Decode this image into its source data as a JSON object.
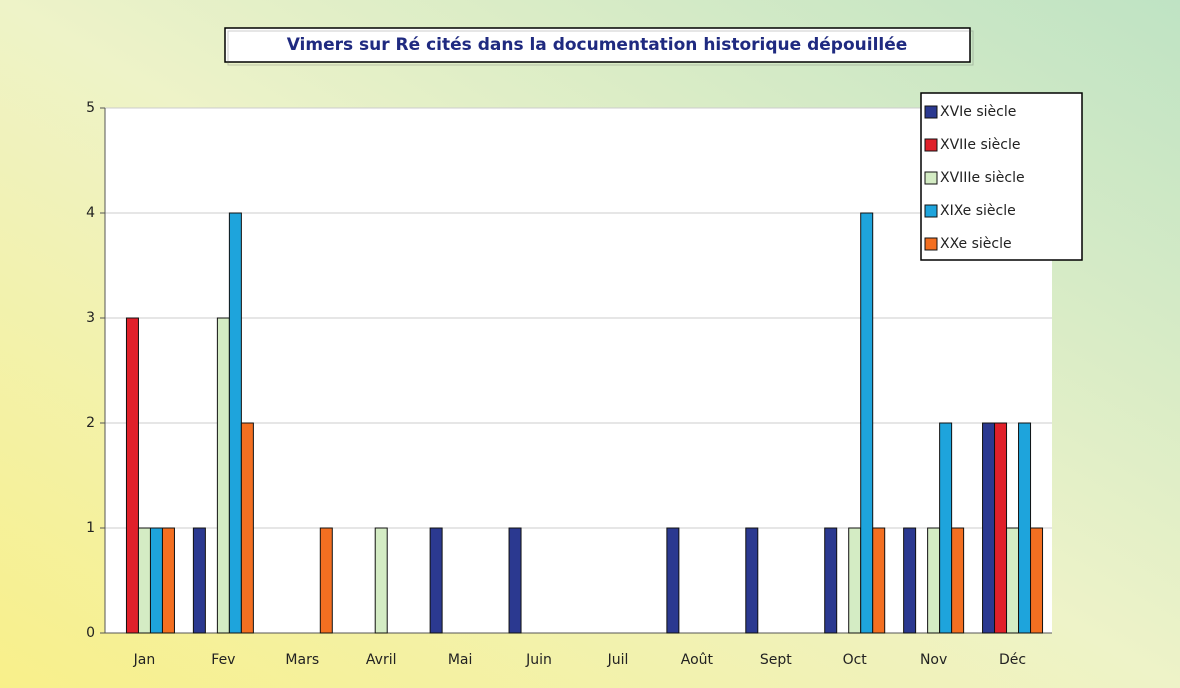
{
  "chart_data": {
    "type": "bar",
    "title": "Vimers sur Ré cités dans la documentation historique dépouillée",
    "categories": [
      "Jan",
      "Fev",
      "Mars",
      "Avril",
      "Mai",
      "Juin",
      "Juil",
      "Août",
      "Sept",
      "Oct",
      "Nov",
      "Déc"
    ],
    "series": [
      {
        "name": "XVIe siècle",
        "color": "#2b3990",
        "values": [
          0,
          1,
          0,
          0,
          1,
          1,
          0,
          1,
          1,
          1,
          1,
          2
        ]
      },
      {
        "name": "XVIIe siècle",
        "color": "#e0202a",
        "values": [
          3,
          0,
          0,
          0,
          0,
          0,
          0,
          0,
          0,
          0,
          0,
          2
        ]
      },
      {
        "name": "XVIIIe siècle",
        "color": "#d4ecc4",
        "values": [
          1,
          3,
          0,
          1,
          0,
          0,
          0,
          0,
          0,
          1,
          1,
          1
        ]
      },
      {
        "name": "XIXe siècle",
        "color": "#1ea4dc",
        "values": [
          1,
          4,
          0,
          0,
          0,
          0,
          0,
          0,
          0,
          4,
          2,
          2
        ]
      },
      {
        "name": "XXe siècle",
        "color": "#f36f21",
        "values": [
          1,
          2,
          1,
          0,
          0,
          0,
          0,
          0,
          0,
          1,
          1,
          1
        ]
      }
    ],
    "ylim": [
      0,
      5
    ],
    "yticks": [
      0,
      1,
      2,
      3,
      4,
      5
    ],
    "grid": true,
    "legend": "upper right"
  }
}
